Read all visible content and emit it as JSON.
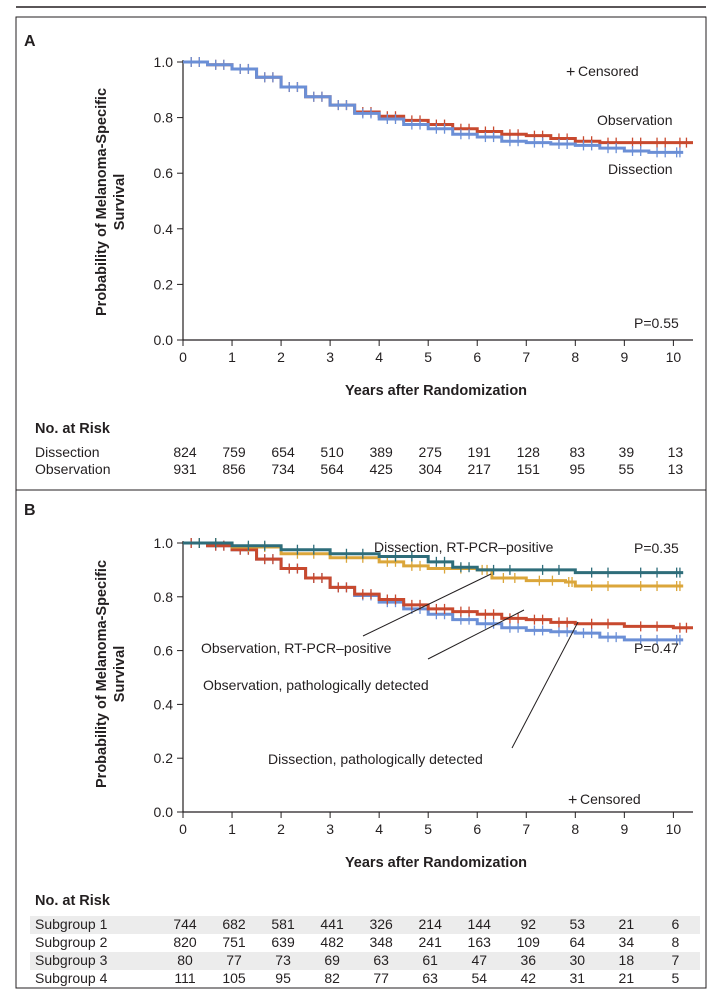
{
  "colors": {
    "dissection": "#6b8fd6",
    "observation": "#c8492e",
    "dissection_rt": "#2e6d7a",
    "observation_rt": "#dba63a",
    "axis": "#231f20",
    "risk_band": "#ececec"
  },
  "censored_symbol": "+",
  "chart_data": [
    {
      "panel_label": "A",
      "type": "line",
      "subtype": "kaplan-meier",
      "ylabel_line1": "Probability of Melanoma-Specific",
      "ylabel_line2": "Survival",
      "xlabel": "Years after Randomization",
      "xlim": [
        0,
        10.4
      ],
      "ylim": [
        0,
        1.0
      ],
      "x_ticks": [
        "0",
        "1",
        "2",
        "3",
        "4",
        "5",
        "6",
        "7",
        "8",
        "9",
        "10"
      ],
      "y_ticks": [
        "0.0",
        "0.2",
        "0.4",
        "0.6",
        "0.8",
        "1.0"
      ],
      "censored_legend": "Censored",
      "p_value": "P=0.55",
      "series": [
        {
          "name": "Dissection",
          "color_key": "dissection",
          "points": [
            [
              0,
              1.0
            ],
            [
              0.5,
              0.99
            ],
            [
              1,
              0.975
            ],
            [
              1.5,
              0.945
            ],
            [
              2,
              0.91
            ],
            [
              2.5,
              0.875
            ],
            [
              3,
              0.845
            ],
            [
              3.5,
              0.815
            ],
            [
              4,
              0.795
            ],
            [
              4.5,
              0.775
            ],
            [
              5,
              0.76
            ],
            [
              5.5,
              0.74
            ],
            [
              6,
              0.73
            ],
            [
              6.5,
              0.715
            ],
            [
              7,
              0.71
            ],
            [
              7.5,
              0.705
            ],
            [
              8,
              0.7
            ],
            [
              8.5,
              0.69
            ],
            [
              9,
              0.68
            ],
            [
              9.5,
              0.675
            ],
            [
              10,
              0.675
            ],
            [
              10.2,
              0.675
            ]
          ]
        },
        {
          "name": "Observation",
          "color_key": "observation",
          "points": [
            [
              0,
              1.0
            ],
            [
              0.5,
              0.99
            ],
            [
              1,
              0.975
            ],
            [
              1.5,
              0.945
            ],
            [
              2,
              0.91
            ],
            [
              2.5,
              0.875
            ],
            [
              3,
              0.845
            ],
            [
              3.5,
              0.82
            ],
            [
              4,
              0.805
            ],
            [
              4.5,
              0.79
            ],
            [
              5,
              0.775
            ],
            [
              5.5,
              0.76
            ],
            [
              6,
              0.75
            ],
            [
              6.5,
              0.74
            ],
            [
              7,
              0.735
            ],
            [
              7.5,
              0.725
            ],
            [
              8,
              0.715
            ],
            [
              8.5,
              0.71
            ],
            [
              9,
              0.71
            ],
            [
              9.5,
              0.71
            ],
            [
              10,
              0.71
            ],
            [
              10.4,
              0.71
            ]
          ]
        }
      ],
      "annotations": [
        "Observation",
        "Dissection"
      ],
      "risk_table": {
        "title": "No. at Risk",
        "rows": [
          {
            "label": "Dissection",
            "values": [
              "824",
              "759",
              "654",
              "510",
              "389",
              "275",
              "191",
              "128",
              "83",
              "39",
              "13"
            ]
          },
          {
            "label": "Observation",
            "values": [
              "931",
              "856",
              "734",
              "564",
              "425",
              "304",
              "217",
              "151",
              "95",
              "55",
              "13"
            ]
          }
        ]
      }
    },
    {
      "panel_label": "B",
      "type": "line",
      "subtype": "kaplan-meier",
      "ylabel_line1": "Probability of Melanoma-Specific",
      "ylabel_line2": "Survival",
      "xlabel": "Years after Randomization",
      "xlim": [
        0,
        10.4
      ],
      "ylim": [
        0,
        1.0
      ],
      "x_ticks": [
        "0",
        "1",
        "2",
        "3",
        "4",
        "5",
        "6",
        "7",
        "8",
        "9",
        "10"
      ],
      "y_ticks": [
        "0.0",
        "0.2",
        "0.4",
        "0.6",
        "0.8",
        "1.0"
      ],
      "censored_legend": "Censored",
      "p_value_top": "P=0.35",
      "p_value_bottom": "P=0.47",
      "series": [
        {
          "name": "Dissection, RT-PCR–positive",
          "color_key": "dissection_rt",
          "points": [
            [
              0,
              1.0
            ],
            [
              1,
              0.99
            ],
            [
              2,
              0.975
            ],
            [
              3,
              0.96
            ],
            [
              4,
              0.95
            ],
            [
              5,
              0.93
            ],
            [
              5.5,
              0.91
            ],
            [
              6,
              0.9
            ],
            [
              7,
              0.9
            ],
            [
              8,
              0.89
            ],
            [
              9,
              0.89
            ],
            [
              10,
              0.89
            ],
            [
              10.2,
              0.89
            ]
          ]
        },
        {
          "name": "Observation, RT-PCR–positive",
          "color_key": "observation_rt",
          "points": [
            [
              0,
              1.0
            ],
            [
              1,
              0.985
            ],
            [
              2,
              0.96
            ],
            [
              3,
              0.945
            ],
            [
              4,
              0.93
            ],
            [
              4.5,
              0.915
            ],
            [
              5,
              0.905
            ],
            [
              6,
              0.9
            ],
            [
              6.3,
              0.87
            ],
            [
              7,
              0.86
            ],
            [
              7.8,
              0.855
            ],
            [
              8,
              0.84
            ],
            [
              9,
              0.84
            ],
            [
              10,
              0.84
            ],
            [
              10.2,
              0.84
            ]
          ]
        },
        {
          "name": "Observation, pathologically detected",
          "color_key": "observation",
          "points": [
            [
              0,
              1.0
            ],
            [
              0.5,
              0.99
            ],
            [
              1,
              0.975
            ],
            [
              1.5,
              0.94
            ],
            [
              2,
              0.905
            ],
            [
              2.5,
              0.87
            ],
            [
              3,
              0.835
            ],
            [
              3.5,
              0.81
            ],
            [
              4,
              0.79
            ],
            [
              4.5,
              0.77
            ],
            [
              5,
              0.755
            ],
            [
              5.5,
              0.745
            ],
            [
              6,
              0.735
            ],
            [
              6.5,
              0.72
            ],
            [
              7,
              0.715
            ],
            [
              7.5,
              0.705
            ],
            [
              8,
              0.7
            ],
            [
              9,
              0.69
            ],
            [
              10,
              0.685
            ],
            [
              10.4,
              0.685
            ]
          ]
        },
        {
          "name": "Dissection, pathologically detected",
          "color_key": "dissection",
          "points": [
            [
              0,
              1.0
            ],
            [
              0.5,
              0.99
            ],
            [
              1,
              0.975
            ],
            [
              1.5,
              0.94
            ],
            [
              2,
              0.905
            ],
            [
              2.5,
              0.87
            ],
            [
              3,
              0.835
            ],
            [
              3.5,
              0.805
            ],
            [
              4,
              0.78
            ],
            [
              4.5,
              0.755
            ],
            [
              5,
              0.735
            ],
            [
              5.5,
              0.715
            ],
            [
              6,
              0.7
            ],
            [
              6.5,
              0.685
            ],
            [
              7,
              0.675
            ],
            [
              7.5,
              0.67
            ],
            [
              8,
              0.665
            ],
            [
              8.5,
              0.65
            ],
            [
              9,
              0.64
            ],
            [
              10,
              0.64
            ],
            [
              10.2,
              0.64
            ]
          ]
        }
      ],
      "risk_table": {
        "title": "No. at Risk",
        "rows": [
          {
            "label": "Subgroup 1",
            "values": [
              "744",
              "682",
              "581",
              "441",
              "326",
              "214",
              "144",
              "92",
              "53",
              "21",
              "6"
            ]
          },
          {
            "label": "Subgroup 2",
            "values": [
              "820",
              "751",
              "639",
              "482",
              "348",
              "241",
              "163",
              "109",
              "64",
              "34",
              "8"
            ]
          },
          {
            "label": "Subgroup 3",
            "values": [
              "80",
              "77",
              "73",
              "69",
              "63",
              "61",
              "47",
              "36",
              "30",
              "18",
              "7"
            ]
          },
          {
            "label": "Subgroup 4",
            "values": [
              "111",
              "105",
              "95",
              "82",
              "77",
              "63",
              "54",
              "42",
              "31",
              "21",
              "5"
            ]
          }
        ]
      }
    }
  ]
}
